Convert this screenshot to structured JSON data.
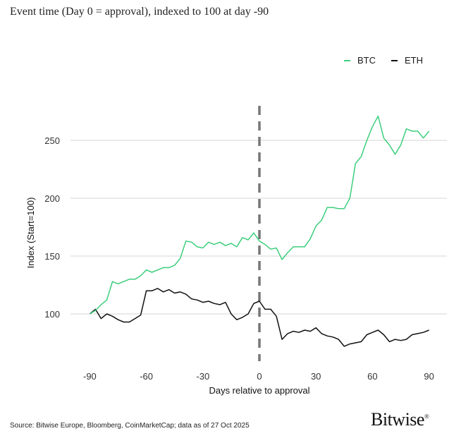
{
  "chart_data": {
    "type": "line",
    "title": "Event time (Day 0 = approval), indexed to 100 at day -90",
    "xlabel": "Days relative to approval",
    "ylabel": "Index (Start=100)",
    "xlim": [
      -100,
      100
    ],
    "ylim": [
      60,
      280
    ],
    "xticks": [
      -90,
      -60,
      -30,
      0,
      30,
      60,
      90
    ],
    "yticks": [
      100,
      150,
      200,
      250
    ],
    "grid": "horizontal",
    "legend_position": "top-right",
    "annotation": "vertical dashed line at day 0",
    "x": [
      -90,
      -87,
      -84,
      -81,
      -78,
      -75,
      -72,
      -69,
      -66,
      -63,
      -60,
      -57,
      -54,
      -51,
      -48,
      -45,
      -42,
      -39,
      -36,
      -33,
      -30,
      -27,
      -24,
      -21,
      -18,
      -15,
      -12,
      -9,
      -6,
      -3,
      0,
      3,
      6,
      9,
      12,
      15,
      18,
      21,
      24,
      27,
      30,
      33,
      36,
      39,
      42,
      45,
      48,
      51,
      54,
      57,
      60,
      63,
      66,
      69,
      72,
      75,
      78,
      81,
      84,
      87,
      90
    ],
    "series": [
      {
        "name": "BTC",
        "color": "#3ccf7c",
        "values": [
          100,
          103,
          108,
          112,
          128,
          126,
          128,
          130,
          130,
          133,
          138,
          136,
          138,
          140,
          140,
          142,
          148,
          163,
          162,
          158,
          157,
          162,
          160,
          162,
          159,
          161,
          158,
          166,
          164,
          170,
          163,
          160,
          156,
          157,
          147,
          153,
          158,
          158,
          158,
          165,
          176,
          181,
          192,
          192,
          191,
          191,
          200,
          230,
          236,
          250,
          262,
          271,
          252,
          246,
          238,
          246,
          260,
          258,
          258,
          252,
          258
        ]
      },
      {
        "name": "ETH",
        "color": "#111111",
        "values": [
          100,
          104,
          96,
          100,
          98,
          95,
          93,
          93,
          96,
          99,
          120,
          120,
          122,
          119,
          121,
          118,
          119,
          117,
          113,
          112,
          110,
          111,
          109,
          108,
          110,
          100,
          95,
          97,
          100,
          109,
          111,
          104,
          104,
          98,
          78,
          83,
          85,
          84,
          86,
          85,
          88,
          83,
          81,
          80,
          78,
          72,
          74,
          75,
          76,
          82,
          84,
          86,
          82,
          76,
          78,
          77,
          78,
          82,
          83,
          84,
          86
        ]
      }
    ]
  },
  "footer": {
    "source": "Source: Bitwise Europe, Bloomberg, CoinMarketCap; data as of 27 Oct 2025",
    "logo": "Bitwise"
  }
}
